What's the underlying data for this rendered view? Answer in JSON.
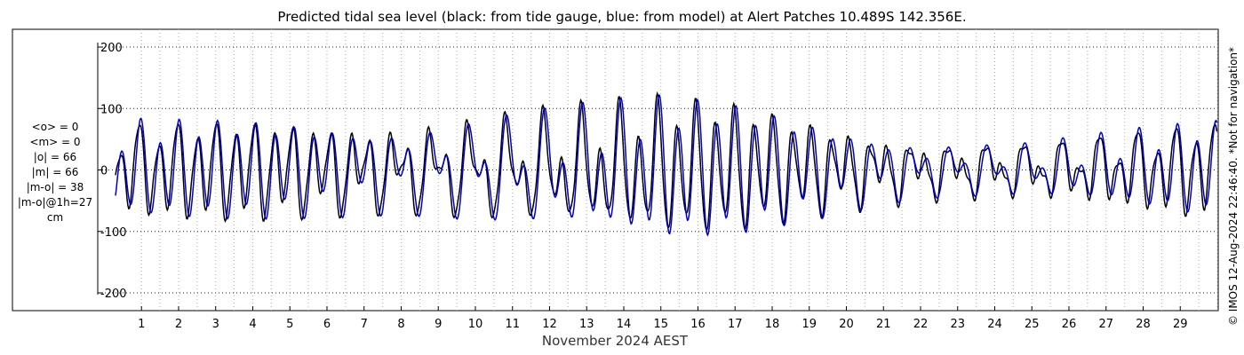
{
  "title": "Predicted tidal sea level (black: from tide gauge, blue: from model) at Alert Patches 10.489S 142.356E.",
  "stats": [
    "<o> = 0",
    "<m> = 0",
    "|o| = 66",
    "|m| = 66",
    "|m-o| = 38",
    "|m-o|@1h=27",
    "cm"
  ],
  "copyright": "© IMOS 12-Aug-2024 22:46:40. *Not for navigation*",
  "chart_data": {
    "type": "line",
    "title": "Predicted tidal sea level (black: from tide gauge, blue: from model) at Alert Patches 10.489S 142.356E.",
    "xlabel": "November 2024 AEST",
    "ylabel": "",
    "xlim": [
      0.3,
      30.0
    ],
    "ylim": [
      -200,
      200
    ],
    "x_ticks": [
      1,
      2,
      3,
      4,
      5,
      6,
      7,
      8,
      9,
      10,
      11,
      12,
      13,
      14,
      15,
      16,
      17,
      18,
      19,
      20,
      21,
      22,
      23,
      24,
      25,
      26,
      27,
      28,
      29
    ],
    "y_ticks": [
      -200,
      -100,
      0,
      100,
      200
    ],
    "grid": "dotted",
    "units": "cm",
    "sample_step_hours": 1,
    "series": [
      {
        "color": "#000000",
        "x_start": 0.3,
        "amplitude_envelope": [
          [
            0.3,
            70,
            95
          ],
          [
            4,
            70,
            100
          ],
          [
            8,
            55,
            100
          ],
          [
            11,
            90,
            110
          ],
          [
            15,
            110,
            130
          ],
          [
            17,
            100,
            115
          ],
          [
            20,
            60,
            80
          ],
          [
            22,
            45,
            60
          ],
          [
            25,
            45,
            55
          ],
          [
            28,
            65,
            80
          ],
          [
            29.9,
            75,
            95
          ]
        ]
      },
      {
        "color": "#0000cc",
        "x_start": 0.3,
        "amplitude_envelope": [
          [
            0.3,
            75,
            100
          ],
          [
            4,
            70,
            100
          ],
          [
            8,
            60,
            95
          ],
          [
            11,
            95,
            115
          ],
          [
            15,
            115,
            140
          ],
          [
            17,
            105,
            120
          ],
          [
            20,
            65,
            80
          ],
          [
            22,
            45,
            55
          ],
          [
            25,
            45,
            55
          ],
          [
            28,
            65,
            80
          ],
          [
            29.9,
            75,
            95
          ]
        ]
      }
    ]
  }
}
